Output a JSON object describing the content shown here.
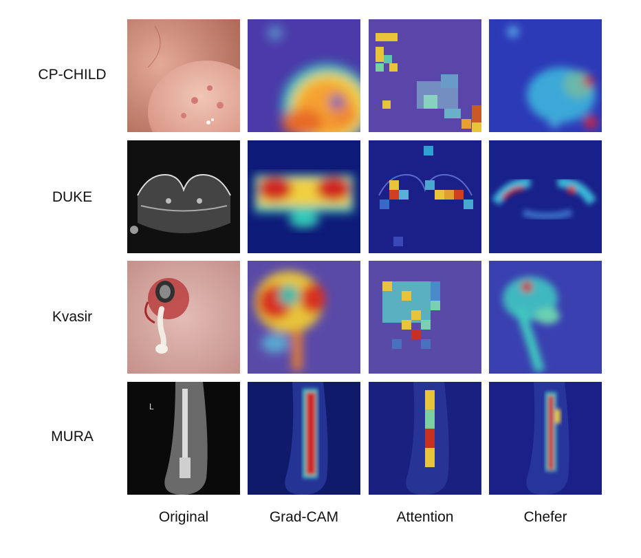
{
  "rows": [
    "CP-CHILD",
    "DUKE",
    "Kvasir",
    "MURA"
  ],
  "columns": [
    "Original",
    "Grad-CAM",
    "Attention",
    "Chefer"
  ],
  "colors": {
    "colormap_low": "#2a2aa8",
    "colormap_mid": "#4fd6c8",
    "colormap_high": "#f5a030",
    "colormap_peak": "#c81818",
    "endoscopy_pink": "#d89a92",
    "xray_gray": "#9a9a9a"
  }
}
